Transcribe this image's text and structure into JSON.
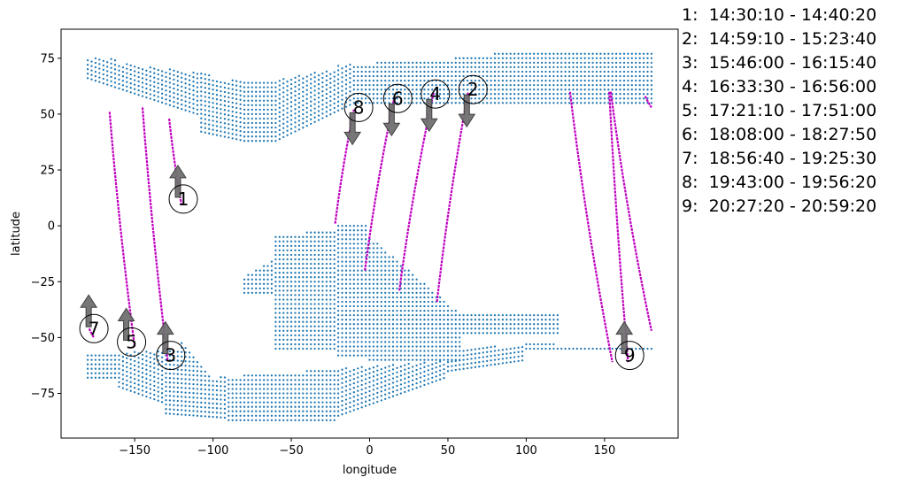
{
  "chart_data": {
    "type": "scatter",
    "title": "",
    "xlabel": "longitude",
    "ylabel": "latitude",
    "xlim": [
      -197,
      197
    ],
    "ylim": [
      -95,
      88
    ],
    "x_ticks": [
      -150,
      -100,
      -50,
      0,
      50,
      100,
      150
    ],
    "x_tick_labels": [
      "−150",
      "−100",
      "−50",
      "0",
      "50",
      "100",
      "150"
    ],
    "y_ticks": [
      -75,
      -50,
      -25,
      0,
      25,
      50,
      75
    ],
    "y_tick_labels": [
      "−75",
      "−50",
      "−25",
      "0",
      "25",
      "50",
      "75"
    ],
    "grid": false,
    "legend_placement": "right, outside plot",
    "colors": {
      "coverage_points": "#1f77b4",
      "track": "#bf00bf",
      "arrow_fill": "#707070",
      "arrow_edge": "#404040"
    },
    "coverage_bands": [
      {
        "region": "north",
        "lon_range": [
          -180,
          180
        ],
        "lat_range": [
          38,
          78
        ]
      },
      {
        "region": "south",
        "lon_range": [
          -180,
          180
        ],
        "lat_range": [
          -87,
          -40
        ]
      },
      {
        "region": "central",
        "lon_range": [
          -82,
          122
        ],
        "lat_range": [
          -60,
          3
        ]
      }
    ],
    "tracks": [
      {
        "label": "1",
        "time": "14:30:10 - 14:40:20",
        "lon": [
          -128,
          -120
        ],
        "lat": [
          48,
          9
        ],
        "direction": "north",
        "marker_pos": [
          -119,
          12
        ]
      },
      {
        "label": "2",
        "time": "14:59:10 - 15:23:40",
        "lon": [
          43,
          63
        ],
        "lat": [
          -34,
          60
        ],
        "direction": "south",
        "marker_pos": [
          66,
          61
        ]
      },
      {
        "label": "3",
        "time": "15:46:00 - 16:15:40",
        "lon": [
          -145,
          -129
        ],
        "lat": [
          53,
          -60
        ],
        "direction": "north",
        "marker_pos": [
          -127,
          -58
        ]
      },
      {
        "label": "4",
        "time": "16:33:30 - 16:56:00",
        "lon": [
          19,
          41
        ],
        "lat": [
          -29,
          60
        ],
        "direction": "south",
        "marker_pos": [
          42,
          59
        ]
      },
      {
        "label": "5",
        "time": "17:21:10 - 17:51:00",
        "lon": [
          -166,
          -150
        ],
        "lat": [
          51,
          -54
        ],
        "direction": "north",
        "marker_pos": [
          -152,
          -52
        ]
      },
      {
        "label": "6",
        "time": "18:08:00 - 18:27:50",
        "lon": [
          -3,
          16
        ],
        "lat": [
          -20,
          58
        ],
        "direction": "south",
        "marker_pos": [
          18,
          57
        ]
      },
      {
        "label": "7",
        "time": "18:56:40 - 19:25:30",
        "lon": [
          -179,
          -176
        ],
        "lat": [
          -46,
          -50
        ],
        "direction": "north",
        "marker_pos": [
          -176,
          -46
        ]
      },
      {
        "label": "8",
        "time": "19:43:00 - 19:56:20",
        "lon": [
          -22,
          -10
        ],
        "lat": [
          1,
          52
        ],
        "direction": "south",
        "marker_pos": [
          -7,
          53
        ]
      },
      {
        "label": "9",
        "time": "20:27:20 - 20:59:20",
        "lon": [
          153,
          165
        ],
        "lat": [
          60,
          -61
        ],
        "direction": "north",
        "marker_pos": [
          166,
          -58
        ]
      }
    ],
    "extra_track_segments": [
      {
        "lon": [
          128,
          155
        ],
        "lat": [
          60,
          -61
        ]
      },
      {
        "lon": [
          176,
          180
        ],
        "lat": [
          58,
          53
        ]
      },
      {
        "lon": [
          154,
          180
        ],
        "lat": [
          60,
          -47
        ]
      }
    ],
    "legend": [
      {
        "num": "1:",
        "time": "14:30:10 - 14:40:20"
      },
      {
        "num": "2:",
        "time": "14:59:10 - 15:23:40"
      },
      {
        "num": "3:",
        "time": "15:46:00 - 16:15:40"
      },
      {
        "num": "4:",
        "time": "16:33:30 - 16:56:00"
      },
      {
        "num": "5:",
        "time": "17:21:10 - 17:51:00"
      },
      {
        "num": "6:",
        "time": "18:08:00 - 18:27:50"
      },
      {
        "num": "7:",
        "time": "18:56:40 - 19:25:30"
      },
      {
        "num": "8:",
        "time": "19:43:00 - 19:56:20"
      },
      {
        "num": "9:",
        "time": "20:27:20 - 20:59:20"
      }
    ]
  }
}
